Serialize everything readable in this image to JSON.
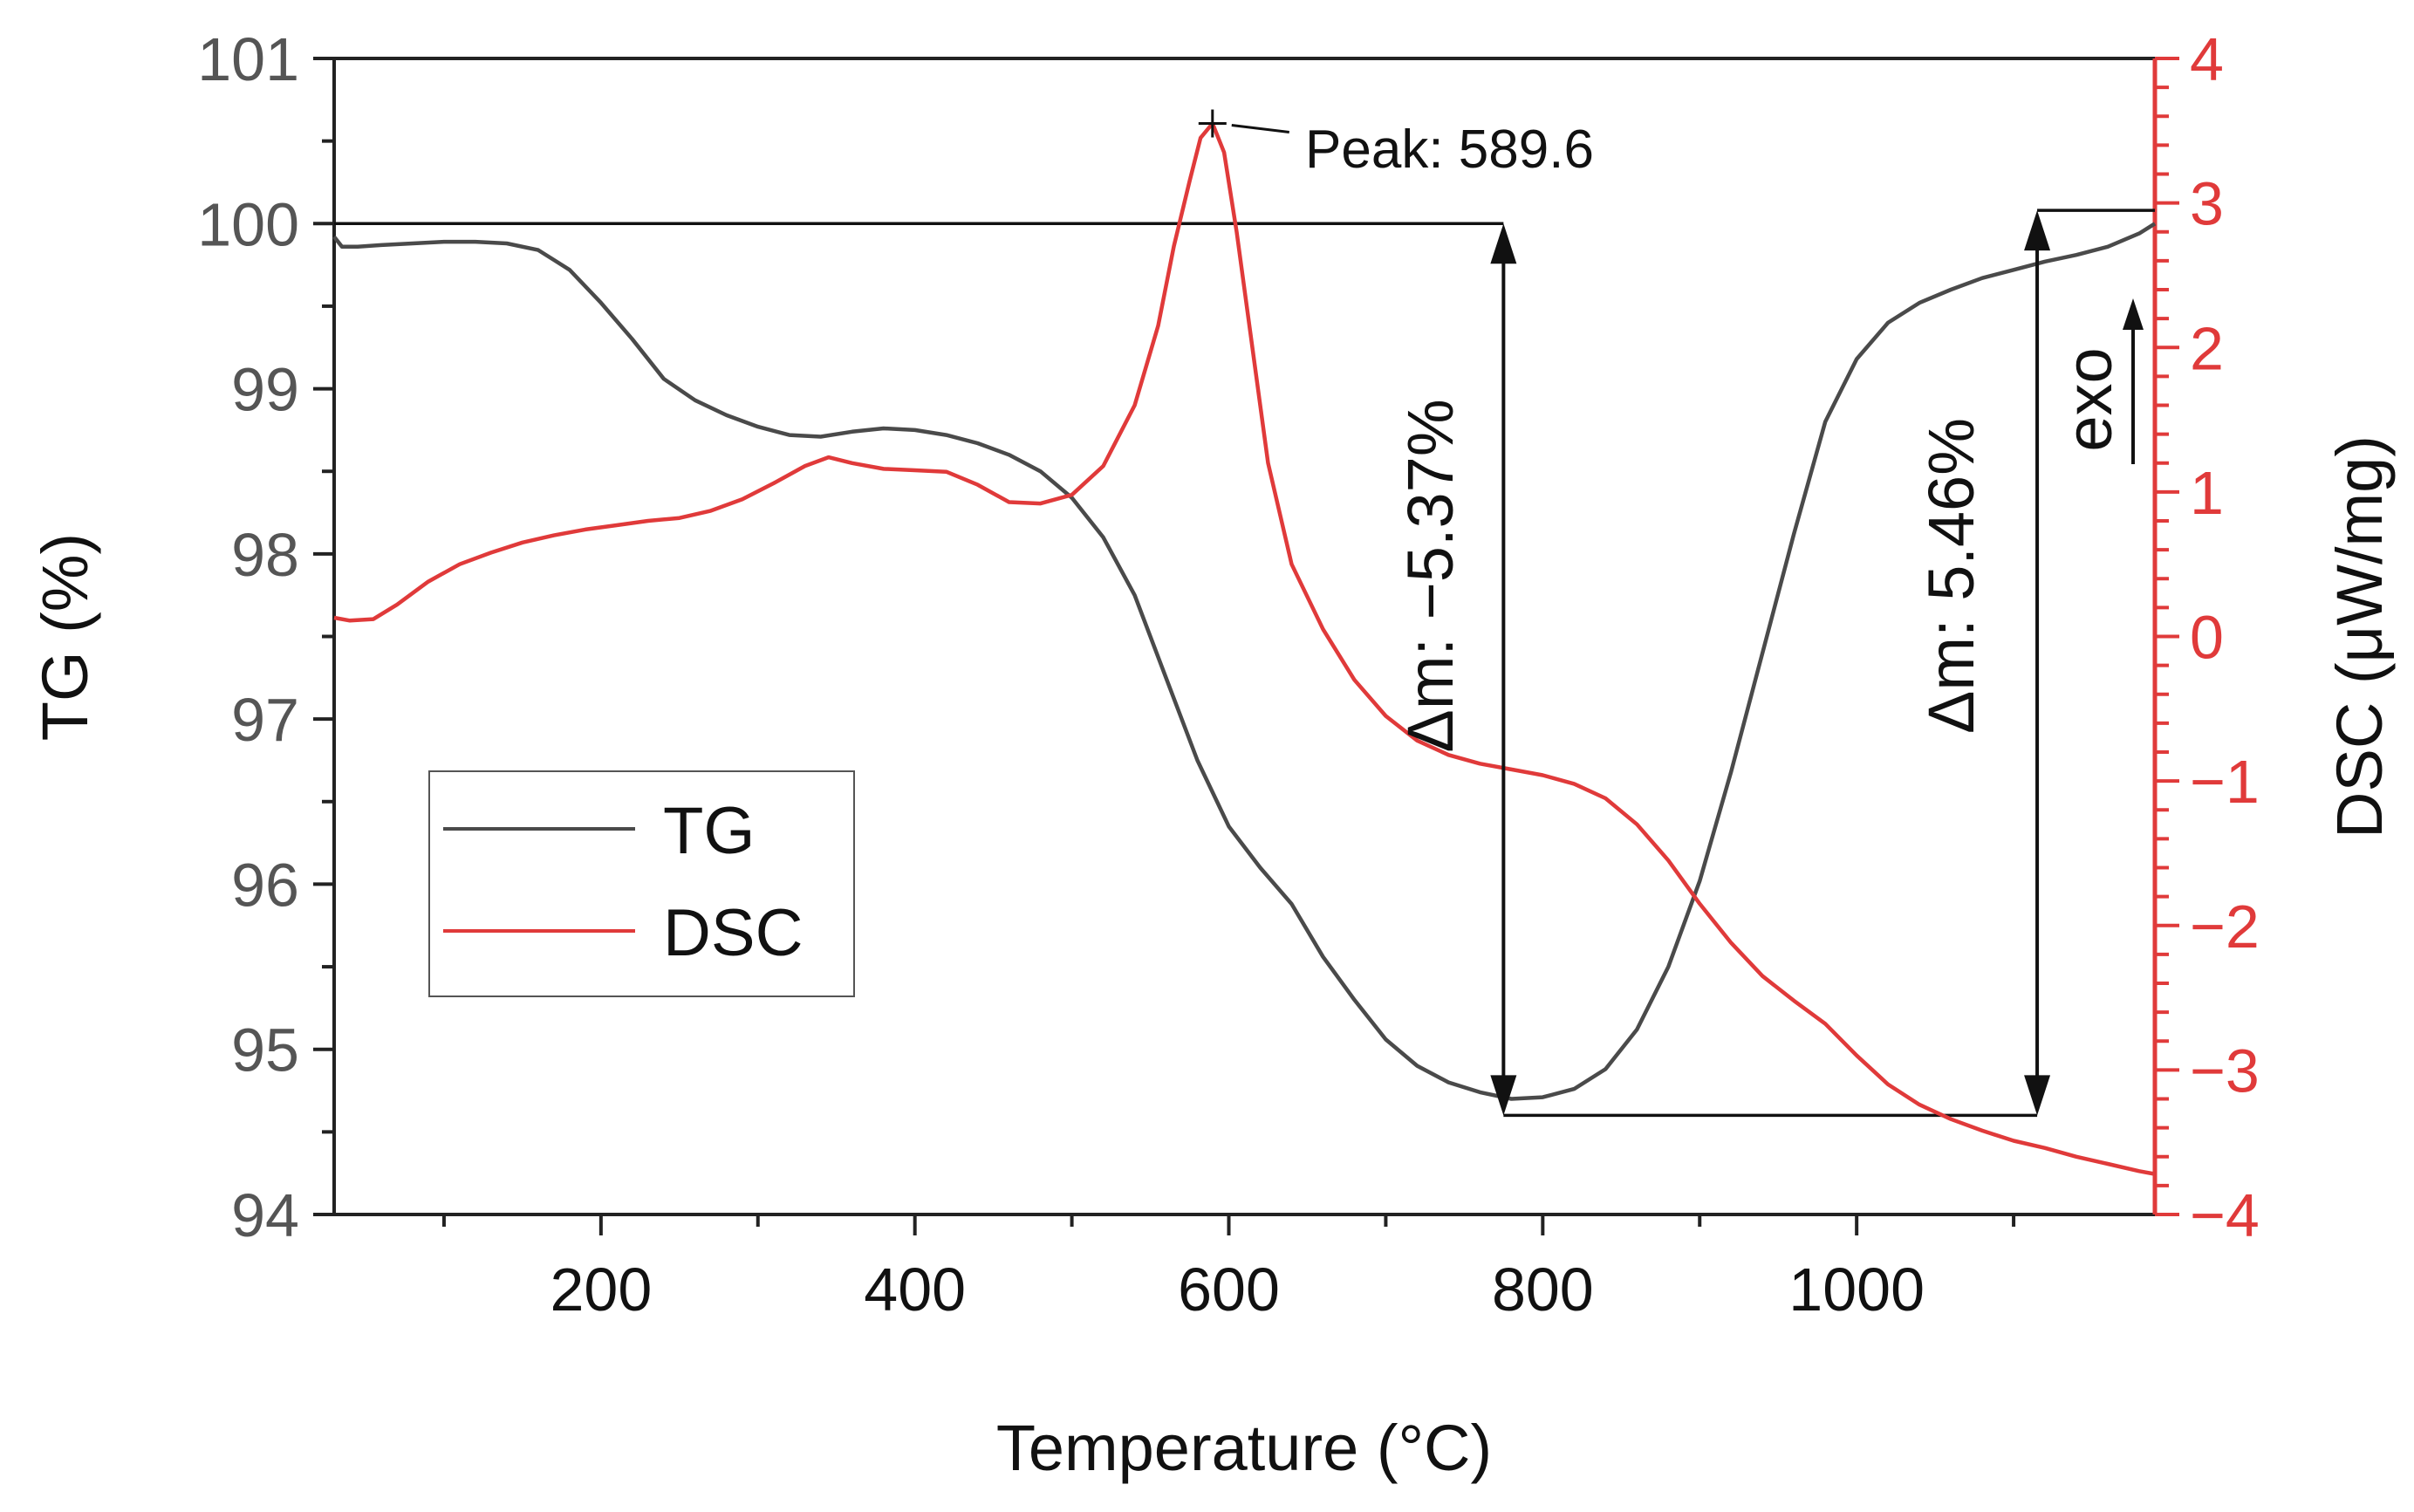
{
  "chart_data": {
    "type": "line",
    "title": "",
    "xlabel": "Temperature (°C)",
    "ylabel_left": "TG (%)",
    "ylabel_right": "DSC (μW/mg)",
    "xlim": [
      30,
      1190
    ],
    "ylim_left": [
      94,
      101
    ],
    "ylim_right": [
      -4,
      4
    ],
    "x_ticks": [
      {
        "value": 200,
        "label": "200"
      },
      {
        "value": 400,
        "label": "400"
      },
      {
        "value": 600,
        "label": "600"
      },
      {
        "value": 800,
        "label": "800"
      },
      {
        "value": 1000,
        "label": "1000"
      }
    ],
    "y_ticks_left": [
      {
        "value": 94,
        "label": "94"
      },
      {
        "value": 95,
        "label": "95"
      },
      {
        "value": 96,
        "label": "96"
      },
      {
        "value": 97,
        "label": "97"
      },
      {
        "value": 98,
        "label": "98"
      },
      {
        "value": 99,
        "label": "99"
      },
      {
        "value": 100,
        "label": "100"
      },
      {
        "value": 101,
        "label": "101"
      }
    ],
    "y_ticks_right": [
      {
        "value": -4,
        "label": "−4"
      },
      {
        "value": -3,
        "label": "−3"
      },
      {
        "value": -2,
        "label": "−2"
      },
      {
        "value": -1,
        "label": "−1"
      },
      {
        "value": 0,
        "label": "0"
      },
      {
        "value": 1,
        "label": "1"
      },
      {
        "value": 2,
        "label": "2"
      },
      {
        "value": 3,
        "label": "3"
      },
      {
        "value": 4,
        "label": "4"
      }
    ],
    "legend_position": "center-left",
    "series": [
      {
        "name": "TG",
        "axis": "left",
        "color": "#4a4a4a",
        "x": [
          30,
          35,
          45,
          60,
          80,
          100,
          120,
          140,
          160,
          180,
          200,
          220,
          240,
          260,
          280,
          300,
          320,
          340,
          360,
          380,
          400,
          420,
          440,
          460,
          480,
          500,
          520,
          540,
          560,
          580,
          600,
          620,
          640,
          660,
          680,
          700,
          720,
          740,
          760,
          780,
          800,
          820,
          840,
          860,
          880,
          900,
          920,
          940,
          960,
          980,
          1000,
          1020,
          1040,
          1060,
          1080,
          1100,
          1120,
          1140,
          1160,
          1180,
          1190
        ],
        "values": [
          99.92,
          99.86,
          99.86,
          99.87,
          99.88,
          99.89,
          99.89,
          99.88,
          99.84,
          99.72,
          99.52,
          99.3,
          99.06,
          98.93,
          98.84,
          98.77,
          98.72,
          98.71,
          98.74,
          98.76,
          98.75,
          98.72,
          98.67,
          98.6,
          98.5,
          98.34,
          98.1,
          97.75,
          97.25,
          96.75,
          96.35,
          96.1,
          95.88,
          95.56,
          95.3,
          95.06,
          94.9,
          94.8,
          94.74,
          94.7,
          94.71,
          94.76,
          94.88,
          95.12,
          95.5,
          96.02,
          96.68,
          97.4,
          98.12,
          98.8,
          99.18,
          99.4,
          99.52,
          99.6,
          99.67,
          99.72,
          99.77,
          99.81,
          99.86,
          99.94,
          100.0
        ]
      },
      {
        "name": "DSC",
        "axis": "right",
        "color": "#e03a3a",
        "x": [
          30,
          40,
          55,
          70,
          90,
          110,
          130,
          150,
          170,
          190,
          210,
          230,
          250,
          270,
          290,
          310,
          330,
          345,
          360,
          380,
          400,
          420,
          440,
          460,
          480,
          500,
          520,
          540,
          555,
          565,
          575,
          582,
          589.6,
          597,
          605,
          615,
          625,
          640,
          660,
          680,
          700,
          720,
          740,
          760,
          780,
          800,
          820,
          840,
          860,
          880,
          900,
          920,
          940,
          960,
          980,
          1000,
          1020,
          1040,
          1060,
          1080,
          1100,
          1120,
          1140,
          1160,
          1180,
          1190
        ],
        "values": [
          0.13,
          0.11,
          0.12,
          0.22,
          0.38,
          0.5,
          0.58,
          0.65,
          0.7,
          0.74,
          0.77,
          0.8,
          0.82,
          0.87,
          0.95,
          1.06,
          1.18,
          1.24,
          1.2,
          1.16,
          1.15,
          1.14,
          1.05,
          0.93,
          0.92,
          0.98,
          1.18,
          1.6,
          2.15,
          2.7,
          3.15,
          3.45,
          3.55,
          3.35,
          2.8,
          2.0,
          1.2,
          0.5,
          0.05,
          -0.3,
          -0.55,
          -0.72,
          -0.82,
          -0.88,
          -0.92,
          -0.96,
          -1.02,
          -1.12,
          -1.3,
          -1.55,
          -1.85,
          -2.12,
          -2.35,
          -2.52,
          -2.68,
          -2.9,
          -3.1,
          -3.24,
          -3.34,
          -3.42,
          -3.49,
          -3.54,
          -3.6,
          -3.65,
          -3.7,
          -3.72
        ]
      }
    ],
    "annotations": {
      "peak": {
        "x": 589.6,
        "y": 3.55,
        "label": "Peak: 589.6"
      },
      "mass_loss": {
        "label": "Δm: −5.37%",
        "x": 775,
        "from": 100.0,
        "to": 94.6
      },
      "mass_gain": {
        "label": "Δm: 5.46%",
        "x": 1115,
        "from": 94.6,
        "to": 100.08
      },
      "exo_label": "exo"
    }
  }
}
